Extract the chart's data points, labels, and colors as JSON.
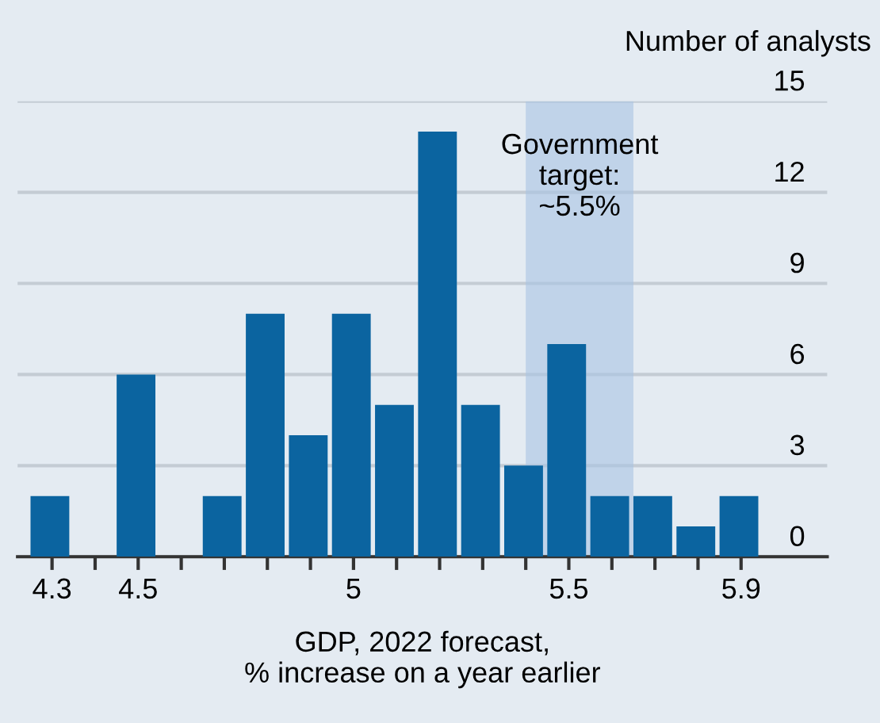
{
  "chart_data": {
    "type": "histogram",
    "ylabel": "Number of analysts",
    "xlabel": "GDP, 2022 forecast,\n% increase on a year earlier",
    "bins": [
      4.25,
      4.35,
      4.45,
      4.55,
      4.65,
      4.75,
      4.85,
      4.95,
      5.05,
      5.15,
      5.25,
      5.35,
      5.45,
      5.55,
      5.65,
      5.75,
      5.85,
      5.95
    ],
    "values": [
      2,
      0,
      6,
      0,
      2,
      8,
      4,
      8,
      5,
      14,
      5,
      3,
      7,
      2,
      2,
      1,
      2
    ],
    "color": "#0b64a0",
    "xlim": [
      4.22,
      6.1
    ],
    "ylim": [
      0,
      15
    ],
    "xticks": [
      4.3,
      {
        "value": 4.4,
        "label": null
      },
      4.5,
      {
        "value": 4.6,
        "label": null
      },
      {
        "value": 4.7,
        "label": null
      },
      {
        "value": 4.8,
        "label": null
      },
      {
        "value": 4.9,
        "label": null
      },
      5,
      {
        "value": 5.1,
        "label": null
      },
      {
        "value": 5.2,
        "label": null
      },
      {
        "value": 5.3,
        "label": null
      },
      {
        "value": 5.4,
        "label": null
      },
      5.5,
      {
        "value": 5.6,
        "label": null
      },
      {
        "value": 5.7,
        "label": null
      },
      {
        "value": 5.8,
        "label": null
      },
      5.9
    ],
    "yticks": [
      0,
      3,
      6,
      9,
      12,
      15
    ],
    "grid": "y",
    "bands": [
      {
        "axis": "x",
        "from": 5.4,
        "to": 5.65,
        "label": "Government\ntarget:\n~5.5%",
        "color": "#a9c3e3"
      }
    ]
  }
}
